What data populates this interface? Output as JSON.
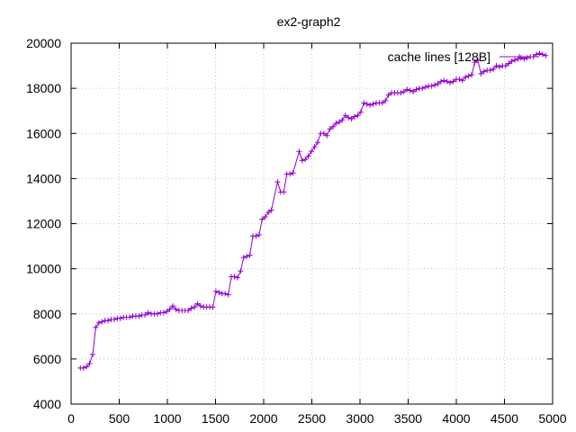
{
  "chart_data": {
    "type": "line",
    "title": "ex2-graph2",
    "xlabel": "",
    "ylabel": "",
    "xlim": [
      0,
      5000
    ],
    "ylim": [
      4000,
      20000
    ],
    "xticks": [
      0,
      500,
      1000,
      1500,
      2000,
      2500,
      3000,
      3500,
      4000,
      4500,
      5000
    ],
    "yticks": [
      4000,
      6000,
      8000,
      10000,
      12000,
      14000,
      16000,
      18000,
      20000
    ],
    "grid": true,
    "legend_position": "top-right",
    "series": [
      {
        "name": "cache lines [128B]",
        "color": "#9400d3",
        "marker": "plus",
        "points": [
          [
            96,
            5600
          ],
          [
            128,
            5600
          ],
          [
            160,
            5650
          ],
          [
            192,
            5800
          ],
          [
            224,
            6200
          ],
          [
            256,
            7400
          ],
          [
            288,
            7600
          ],
          [
            320,
            7650
          ],
          [
            352,
            7700
          ],
          [
            384,
            7700
          ],
          [
            416,
            7750
          ],
          [
            448,
            7750
          ],
          [
            480,
            7800
          ],
          [
            512,
            7800
          ],
          [
            544,
            7850
          ],
          [
            576,
            7850
          ],
          [
            608,
            7850
          ],
          [
            640,
            7900
          ],
          [
            672,
            7900
          ],
          [
            704,
            7900
          ],
          [
            736,
            7950
          ],
          [
            768,
            7950
          ],
          [
            800,
            8050
          ],
          [
            832,
            8000
          ],
          [
            864,
            8000
          ],
          [
            896,
            8000
          ],
          [
            928,
            8050
          ],
          [
            960,
            8050
          ],
          [
            992,
            8100
          ],
          [
            1024,
            8200
          ],
          [
            1056,
            8350
          ],
          [
            1088,
            8200
          ],
          [
            1120,
            8150
          ],
          [
            1152,
            8150
          ],
          [
            1184,
            8150
          ],
          [
            1216,
            8150
          ],
          [
            1248,
            8250
          ],
          [
            1280,
            8300
          ],
          [
            1312,
            8450
          ],
          [
            1344,
            8350
          ],
          [
            1376,
            8300
          ],
          [
            1408,
            8300
          ],
          [
            1440,
            8300
          ],
          [
            1472,
            8300
          ],
          [
            1504,
            9000
          ],
          [
            1536,
            8950
          ],
          [
            1568,
            8900
          ],
          [
            1600,
            8900
          ],
          [
            1632,
            8850
          ],
          [
            1664,
            9650
          ],
          [
            1696,
            9650
          ],
          [
            1728,
            9600
          ],
          [
            1760,
            9900
          ],
          [
            1792,
            10500
          ],
          [
            1824,
            10550
          ],
          [
            1856,
            10600
          ],
          [
            1888,
            11450
          ],
          [
            1920,
            11450
          ],
          [
            1952,
            11500
          ],
          [
            1984,
            12200
          ],
          [
            2016,
            12300
          ],
          [
            2048,
            12500
          ],
          [
            2080,
            12600
          ],
          [
            2144,
            13850
          ],
          [
            2176,
            13400
          ],
          [
            2208,
            13400
          ],
          [
            2240,
            14200
          ],
          [
            2272,
            14200
          ],
          [
            2304,
            14250
          ],
          [
            2368,
            15200
          ],
          [
            2400,
            14800
          ],
          [
            2432,
            14850
          ],
          [
            2464,
            15000
          ],
          [
            2496,
            15200
          ],
          [
            2528,
            15400
          ],
          [
            2560,
            15600
          ],
          [
            2592,
            16000
          ],
          [
            2624,
            16000
          ],
          [
            2656,
            15900
          ],
          [
            2688,
            16200
          ],
          [
            2720,
            16300
          ],
          [
            2752,
            16450
          ],
          [
            2784,
            16500
          ],
          [
            2816,
            16600
          ],
          [
            2848,
            16800
          ],
          [
            2880,
            16700
          ],
          [
            2912,
            16650
          ],
          [
            2944,
            16750
          ],
          [
            2976,
            16800
          ],
          [
            3008,
            16950
          ],
          [
            3040,
            17350
          ],
          [
            3072,
            17300
          ],
          [
            3104,
            17250
          ],
          [
            3136,
            17300
          ],
          [
            3168,
            17350
          ],
          [
            3200,
            17350
          ],
          [
            3232,
            17350
          ],
          [
            3264,
            17450
          ],
          [
            3296,
            17700
          ],
          [
            3328,
            17800
          ],
          [
            3360,
            17800
          ],
          [
            3392,
            17800
          ],
          [
            3424,
            17800
          ],
          [
            3456,
            17850
          ],
          [
            3488,
            17950
          ],
          [
            3520,
            17900
          ],
          [
            3552,
            17850
          ],
          [
            3584,
            17950
          ],
          [
            3616,
            18000
          ],
          [
            3648,
            18000
          ],
          [
            3680,
            18050
          ],
          [
            3712,
            18100
          ],
          [
            3744,
            18100
          ],
          [
            3776,
            18150
          ],
          [
            3808,
            18200
          ],
          [
            3840,
            18300
          ],
          [
            3872,
            18350
          ],
          [
            3904,
            18300
          ],
          [
            3936,
            18250
          ],
          [
            3968,
            18300
          ],
          [
            4000,
            18400
          ],
          [
            4032,
            18400
          ],
          [
            4064,
            18350
          ],
          [
            4096,
            18500
          ],
          [
            4128,
            18550
          ],
          [
            4160,
            18600
          ],
          [
            4192,
            19150
          ],
          [
            4224,
            19250
          ],
          [
            4256,
            18650
          ],
          [
            4288,
            18750
          ],
          [
            4320,
            18800
          ],
          [
            4352,
            18800
          ],
          [
            4384,
            18850
          ],
          [
            4416,
            19000
          ],
          [
            4448,
            18950
          ],
          [
            4480,
            19000
          ],
          [
            4512,
            19000
          ],
          [
            4544,
            19100
          ],
          [
            4576,
            19200
          ],
          [
            4608,
            19250
          ],
          [
            4640,
            19300
          ],
          [
            4672,
            19350
          ],
          [
            4704,
            19300
          ],
          [
            4736,
            19350
          ],
          [
            4768,
            19400
          ],
          [
            4800,
            19400
          ],
          [
            4832,
            19500
          ],
          [
            4864,
            19550
          ],
          [
            4896,
            19500
          ],
          [
            4928,
            19450
          ]
        ]
      }
    ]
  }
}
